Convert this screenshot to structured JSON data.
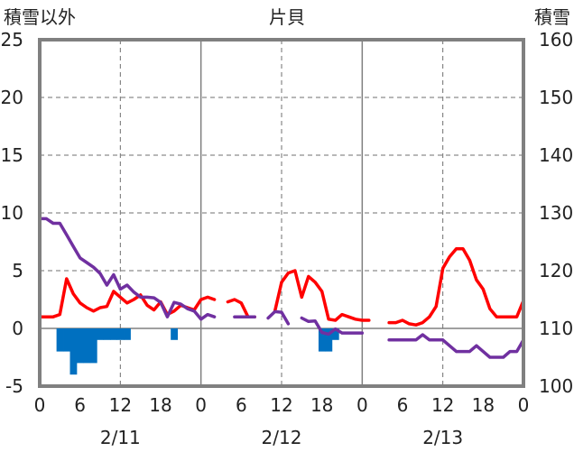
{
  "chart_data": {
    "type": "line",
    "title": "片貝",
    "left_axis_label": "積雪以外",
    "right_axis_label": "積雪",
    "left_ylim": [
      -5,
      25
    ],
    "left_ticks": [
      -5,
      0,
      5,
      10,
      15,
      20,
      25
    ],
    "right_ylim": [
      100,
      160
    ],
    "right_ticks": [
      100,
      110,
      120,
      130,
      140,
      150,
      160
    ],
    "x_tick_labels": [
      "0",
      "6",
      "12",
      "18",
      "0",
      "6",
      "12",
      "18",
      "0",
      "6",
      "12",
      "18",
      "0"
    ],
    "day_labels": [
      "2/11",
      "2/12",
      "2/13"
    ],
    "grid": true,
    "colors": {
      "red": "#ff0000",
      "purple": "#7030a0",
      "blue": "#0070c0"
    },
    "series": [
      {
        "color": "red",
        "axis": "left",
        "points": [
          [
            0,
            1.0
          ],
          [
            2,
            1.0
          ],
          [
            3,
            1.2
          ],
          [
            4,
            4.3
          ],
          [
            5,
            3.0
          ],
          [
            6,
            2.2
          ],
          [
            7,
            1.8
          ],
          [
            8,
            1.5
          ],
          [
            9,
            1.8
          ],
          [
            10,
            1.9
          ],
          [
            11,
            3.2
          ],
          [
            12,
            2.7
          ],
          [
            13,
            2.2
          ],
          [
            14,
            2.5
          ],
          [
            15,
            2.9
          ],
          [
            16,
            2.0
          ],
          [
            17,
            1.6
          ],
          [
            18,
            2.3
          ],
          [
            19,
            1.2
          ],
          [
            20,
            1.5
          ],
          [
            21,
            2.0
          ],
          [
            22,
            1.8
          ],
          [
            23,
            1.6
          ],
          [
            24,
            2.5
          ],
          [
            25,
            2.7
          ],
          [
            26,
            2.5
          ],
          null,
          [
            28,
            2.3
          ],
          [
            29,
            2.5
          ],
          [
            30,
            2.2
          ],
          [
            31,
            1.0
          ],
          [
            32,
            1.0
          ],
          null,
          [
            35,
            1.5
          ],
          [
            36,
            4.0
          ],
          [
            37,
            4.8
          ],
          [
            38,
            5.0
          ],
          [
            39,
            2.7
          ],
          [
            40,
            4.5
          ],
          [
            41,
            4.0
          ],
          [
            42,
            3.2
          ],
          [
            43,
            0.8
          ],
          [
            44,
            0.7
          ],
          [
            45,
            1.2
          ],
          [
            46,
            1.0
          ],
          [
            47,
            0.8
          ],
          [
            48,
            0.7
          ],
          [
            49,
            0.7
          ],
          null,
          [
            52,
            0.5
          ],
          [
            53,
            0.5
          ],
          [
            54,
            0.7
          ],
          [
            55,
            0.4
          ],
          [
            56,
            0.3
          ],
          [
            57,
            0.5
          ],
          [
            58,
            1.0
          ],
          [
            59,
            1.9
          ],
          [
            60,
            5.2
          ],
          [
            61,
            6.2
          ],
          [
            62,
            6.9
          ],
          [
            63,
            6.9
          ],
          [
            64,
            5.9
          ],
          [
            65,
            4.2
          ],
          [
            66,
            3.4
          ],
          [
            67,
            1.7
          ],
          [
            68,
            1.0
          ],
          [
            69,
            1.0
          ],
          [
            70,
            1.0
          ],
          [
            71,
            1.0
          ],
          [
            72,
            2.4
          ]
        ]
      },
      {
        "color": "purple",
        "axis": "right",
        "points": [
          [
            0,
            129
          ],
          [
            1,
            129
          ],
          [
            2,
            128.2
          ],
          [
            3,
            128.2
          ],
          [
            4,
            126.2
          ],
          [
            5,
            124.2
          ],
          [
            6,
            122.2
          ],
          [
            7,
            121.4
          ],
          [
            8,
            120.6
          ],
          [
            9,
            119.5
          ],
          [
            10,
            117.5
          ],
          [
            11,
            119.3
          ],
          [
            12,
            116.8
          ],
          [
            13,
            117.5
          ],
          [
            14,
            116.3
          ],
          [
            15,
            115.4
          ],
          [
            16,
            115.4
          ],
          [
            17,
            115.3
          ],
          [
            18,
            114.5
          ],
          [
            19,
            112.0
          ],
          [
            20,
            114.5
          ],
          [
            21,
            114.2
          ],
          [
            22,
            113.4
          ],
          [
            23,
            113.0
          ],
          [
            24,
            111.6
          ],
          [
            25,
            112.4
          ],
          [
            26,
            112.0
          ],
          null,
          [
            29,
            112.0
          ],
          [
            30,
            112.0
          ],
          [
            31,
            112.0
          ],
          [
            32,
            112.0
          ],
          null,
          [
            34,
            111.8
          ],
          [
            35,
            112.9
          ],
          [
            36,
            112.8
          ],
          [
            37,
            110.8
          ],
          null,
          [
            39,
            111.8
          ],
          [
            40,
            111.2
          ],
          [
            41,
            111.3
          ],
          [
            42,
            109.3
          ],
          [
            43,
            109.0
          ],
          [
            44,
            109.9
          ],
          [
            45,
            109.2
          ],
          [
            46,
            109.2
          ],
          [
            47,
            109.2
          ],
          [
            48,
            109.2
          ],
          null,
          [
            52,
            108.0
          ],
          [
            53,
            108.0
          ],
          [
            54,
            108.0
          ],
          [
            55,
            108.0
          ],
          [
            56,
            108.0
          ],
          [
            57,
            108.9
          ],
          [
            58,
            108.0
          ],
          [
            59,
            108.0
          ],
          [
            60,
            108.0
          ],
          [
            61,
            107.0
          ],
          [
            62,
            106.0
          ],
          [
            63,
            106.0
          ],
          [
            64,
            106.0
          ],
          [
            65,
            107.0
          ],
          [
            66,
            106.0
          ],
          [
            67,
            105.0
          ],
          [
            68,
            105.0
          ],
          [
            69,
            105.0
          ],
          [
            70,
            106.0
          ],
          [
            71,
            106.0
          ],
          [
            72,
            108.0
          ]
        ]
      },
      {
        "type": "bar",
        "color": "blue",
        "axis": "left",
        "bars": [
          [
            3,
            -2.0
          ],
          [
            4,
            -2.0
          ],
          [
            5,
            -4.0
          ],
          [
            6,
            -3.0
          ],
          [
            7,
            -3.0
          ],
          [
            8,
            -3.0
          ],
          [
            9,
            -1.0
          ],
          [
            10,
            -1.0
          ],
          [
            11,
            -1.0
          ],
          [
            12,
            -1.0
          ],
          [
            13,
            -1.0
          ],
          [
            20,
            -1.0
          ],
          [
            42,
            -2.0
          ],
          [
            43,
            -2.0
          ],
          [
            44,
            -1.0
          ]
        ]
      }
    ]
  }
}
